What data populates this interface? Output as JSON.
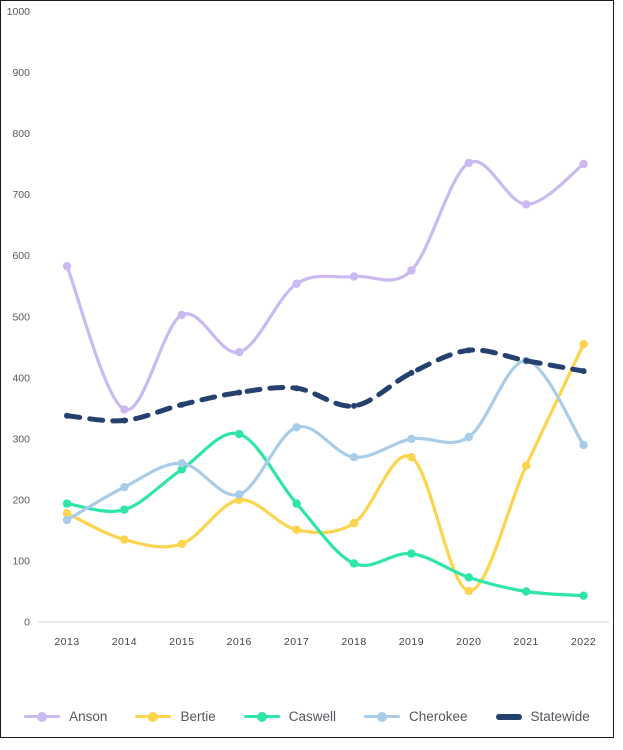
{
  "chart_data": {
    "type": "line",
    "x": [
      "2013",
      "2014",
      "2015",
      "2016",
      "2017",
      "2018",
      "2019",
      "2020",
      "2021",
      "2022"
    ],
    "series": [
      {
        "name": "Anson",
        "color": "#cbbaf2",
        "style": "solid",
        "values": [
          583,
          348,
          503,
          442,
          554,
          566,
          576,
          752,
          684,
          750
        ]
      },
      {
        "name": "Bertie",
        "color": "#fdd44d",
        "style": "solid",
        "values": [
          178,
          135,
          128,
          200,
          151,
          162,
          270,
          51,
          256,
          455
        ]
      },
      {
        "name": "Caswell",
        "color": "#2fe5a7",
        "style": "solid",
        "values": [
          194,
          184,
          250,
          308,
          194,
          96,
          112,
          73,
          50,
          43
        ]
      },
      {
        "name": "Cherokee",
        "color": "#a9cde9",
        "style": "solid",
        "values": [
          167,
          221,
          260,
          209,
          319,
          270,
          300,
          303,
          428,
          290
        ]
      },
      {
        "name": "Statewide",
        "color": "#25416f",
        "style": "dashed",
        "values": [
          338,
          330,
          356,
          376,
          383,
          354,
          408,
          445,
          428,
          411
        ]
      }
    ],
    "title": "",
    "xlabel": "",
    "ylabel": "",
    "ylim": [
      0,
      1000
    ],
    "ytick_step": 100,
    "y_tick_labels": [
      "0",
      "100",
      "200",
      "300",
      "400",
      "500",
      "600",
      "700",
      "800",
      "900",
      "1000"
    ],
    "grid": false,
    "legend_position": "bottom"
  },
  "colors": {
    "axis_line": "#dcdcdc",
    "y_tick_label": "#58595b",
    "x_tick_label": "#3f4245",
    "legend_label": "#54575c",
    "frame_border": "#1c1c1c",
    "background": "#ffffff"
  }
}
